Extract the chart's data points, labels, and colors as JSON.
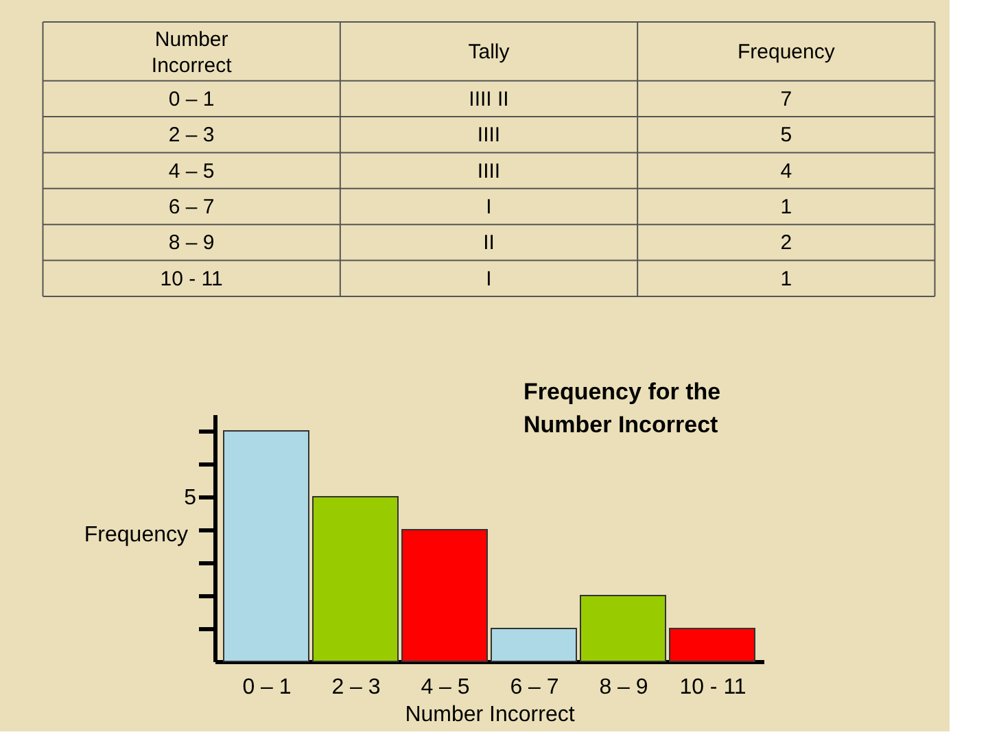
{
  "chart_data": [
    {
      "type": "other",
      "xlabel": "Number Incorrect",
      "ylabel": "Frequency",
      "categories": [
        "0 – 1",
        "2 – 3",
        "4 – 5",
        "6 – 7",
        "8 – 9",
        "10 - 11"
      ],
      "values": [
        7,
        5,
        4,
        1,
        2,
        1
      ],
      "annotations": [
        "Tally",
        "IIII  II",
        "IIII",
        "IIII",
        "I",
        "II",
        "I"
      ],
      "data_labels": true
    },
    {
      "type": "bar",
      "title": "Frequency for the Number Incorrect",
      "xlabel": "Number Incorrect",
      "ylabel": "Frequency",
      "categories": [
        "0 – 1",
        "2 – 3",
        "4 – 5",
        "6 – 7",
        "8 – 9",
        "10 - 11"
      ],
      "values": [
        7,
        5,
        4,
        1,
        2,
        1
      ],
      "colors": [
        "#add8e6",
        "#99cc00",
        "#ff0000",
        "#add8e6",
        "#99cc00",
        "#ff0000"
      ],
      "ylim": [
        0,
        7.5
      ],
      "yticks": [
        {
          "value": 1,
          "label": null
        },
        {
          "value": 2,
          "label": null
        },
        {
          "value": 3,
          "label": null
        },
        {
          "value": 4,
          "label": null
        },
        5,
        {
          "value": 6,
          "label": null
        },
        {
          "value": 7,
          "label": null
        }
      ],
      "grid": false,
      "legend": false
    }
  ]
}
